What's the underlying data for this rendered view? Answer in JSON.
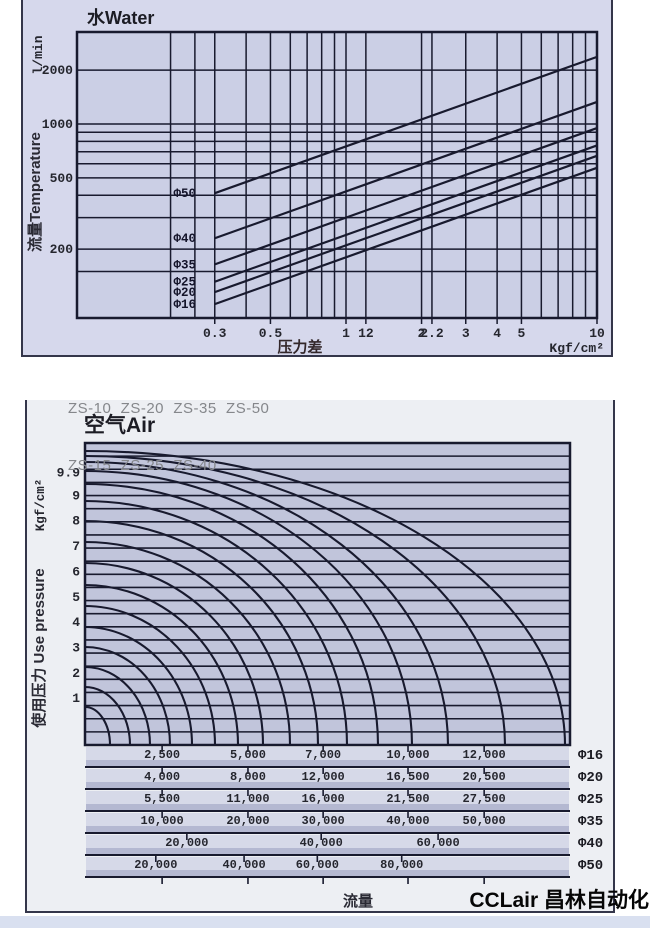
{
  "page": {
    "series_note_line1": "ZS-10  ZS-20  ZS-35  ZS-50",
    "series_note_line2": "ZS-15  ZS-25  ZS-40",
    "watermark": "CCLair 昌林自动化"
  },
  "colors": {
    "top_panel_bg": "#d6d8ec",
    "top_plot_bg": "#cbcfe5",
    "bottom_panel_bg": "#edeff3",
    "bottom_plot_bg": "#c1c5db",
    "table_band_light": "#d6d9e8",
    "table_band_dark": "#b4b8d1",
    "line": "#181a2e",
    "frame": "#34364a",
    "tick_text": "#25262e",
    "footer_strip": "#d9e0f0"
  },
  "chart_data": [
    {
      "type": "line",
      "title": "水Water",
      "ylabel": "流量Temperature",
      "ylabel_units": "l/min",
      "xlabel": "压力差",
      "xlabel_units": "Kgf/cm²",
      "x_scale": "log",
      "y_scale": "log",
      "xlim": [
        0.085,
        10
      ],
      "ylim": [
        82,
        3267
      ],
      "x_ticks": [
        [
          "0.3",
          0.3
        ],
        [
          "0.5",
          0.5
        ],
        [
          "1",
          1
        ],
        [
          "12",
          1.2
        ],
        [
          "2",
          2
        ],
        [
          "2.2",
          2.2
        ],
        [
          "3",
          3
        ],
        [
          "4",
          4
        ],
        [
          "5",
          5
        ],
        [
          "10",
          10
        ]
      ],
      "y_ticks": [
        [
          "2000",
          2000
        ],
        [
          "1000",
          1000
        ],
        [
          "500",
          500
        ],
        [
          "200",
          200
        ]
      ],
      "x_grid": [
        0.2,
        0.25,
        0.3,
        0.4,
        0.5,
        0.6,
        0.7,
        0.8,
        0.9,
        1,
        1.2,
        2,
        2.2,
        3,
        4,
        5,
        6,
        7,
        8,
        9
      ],
      "y_grid": [
        150,
        200,
        300,
        400,
        500,
        600,
        700,
        800,
        900,
        1000,
        2000
      ],
      "series": [
        [
          "Φ50",
          750
        ],
        [
          "Φ40",
          420
        ],
        [
          "Φ35",
          300
        ],
        [
          "Φ25",
          240
        ],
        [
          "Φ20",
          210
        ],
        [
          "Φ16",
          180
        ]
      ],
      "model": "flow l/min = value × √ΔP, drawn from ΔP≈0.3 to 10 Kgf/cm²"
    },
    {
      "type": "curve-family",
      "title": "空气Air",
      "ylabel": "使用压力 Use pressure",
      "ylabel_units": "Kgf/cm²",
      "xlabel": "流量",
      "ylim": [
        0,
        11.9
      ],
      "y_ticks": [
        [
          "9.9",
          9.9
        ],
        [
          "9",
          9
        ],
        [
          "8",
          8
        ],
        [
          "7",
          7
        ],
        [
          "6",
          6
        ],
        [
          "5",
          5
        ],
        [
          "4",
          4
        ],
        [
          "3",
          3
        ],
        [
          "2",
          2
        ],
        [
          "1",
          1
        ]
      ],
      "grid_lines": 22,
      "curves": [
        [
          25,
          38
        ],
        [
          45,
          58
        ],
        [
          65,
          78
        ],
        [
          85,
          98
        ],
        [
          107,
          118
        ],
        [
          130,
          139
        ],
        [
          153,
          160
        ],
        [
          178,
          182
        ],
        [
          205,
          203
        ],
        [
          233,
          224
        ],
        [
          262,
          244
        ],
        [
          293,
          261
        ],
        [
          327,
          274
        ],
        [
          363,
          283
        ],
        [
          420,
          289
        ],
        [
          480,
          294
        ]
      ],
      "table": {
        "rows": [
          {
            "label": "Φ16",
            "values": [
              "2,500",
              "5,000",
              "7,000",
              "10,000",
              "12,000"
            ],
            "pos": [
              0.159,
              0.336,
              0.491,
              0.666,
              0.823
            ]
          },
          {
            "label": "Φ20",
            "values": [
              "4,000",
              "8,000",
              "12,000",
              "16,500",
              "20,500"
            ],
            "pos": [
              0.159,
              0.336,
              0.491,
              0.666,
              0.823
            ]
          },
          {
            "label": "Φ25",
            "values": [
              "5,500",
              "11,000",
              "16,000",
              "21,500",
              "27,500"
            ],
            "pos": [
              0.159,
              0.336,
              0.491,
              0.666,
              0.823
            ]
          },
          {
            "label": "Φ35",
            "values": [
              "10,000",
              "20,000",
              "30,000",
              "40,000",
              "50,000"
            ],
            "pos": [
              0.159,
              0.336,
              0.491,
              0.666,
              0.823
            ]
          },
          {
            "label": "Φ40",
            "values": [
              "20,000",
              "40,000",
              "60,000"
            ],
            "pos": [
              0.21,
              0.487,
              0.728
            ]
          },
          {
            "label": "Φ50",
            "values": [
              "20,000",
              "40,000",
              "60,000",
              "80,000"
            ],
            "pos": [
              0.146,
              0.328,
              0.479,
              0.653
            ]
          }
        ]
      }
    }
  ]
}
